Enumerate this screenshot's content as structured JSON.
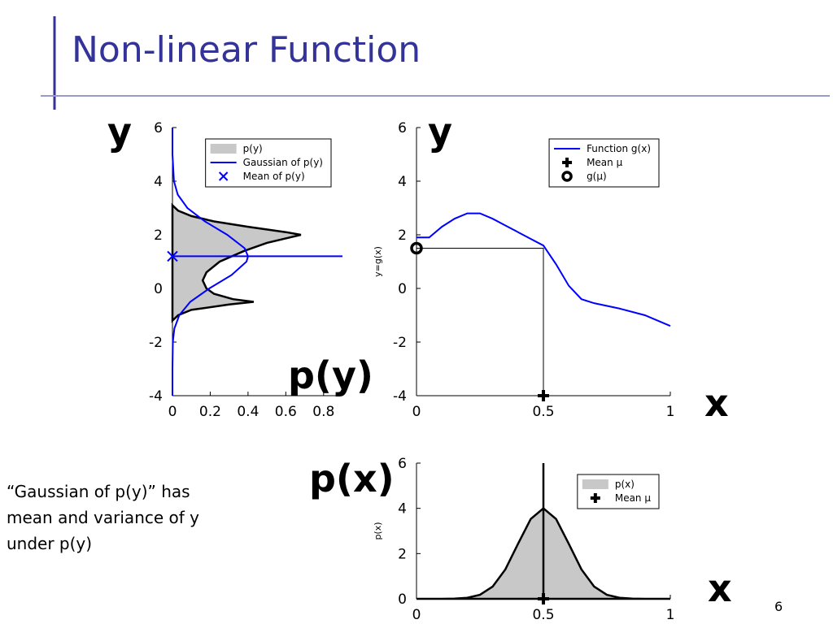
{
  "slide": {
    "title": "Non-linear Function",
    "labels": [
      "y",
      "y",
      "p(y)",
      "x",
      "p(x)",
      "x"
    ],
    "text": [
      "“Gaussian of p(y)” has",
      "mean and variance of y",
      "under p(y)"
    ],
    "page_number": "6"
  },
  "chart_data": [
    {
      "type": "line",
      "xlim": [
        0,
        0.9
      ],
      "ylim": [
        -4,
        6
      ],
      "xticks": [
        0,
        0.2,
        0.4,
        0.6,
        0.8
      ],
      "yticks": [
        -4,
        -2,
        0,
        2,
        4,
        6
      ],
      "legend": "upper right",
      "series": [
        {
          "name": "p(y)",
          "kind": "area",
          "color": "#c8c8c8",
          "edge": "#000000",
          "x": [
            0,
            0.03,
            0.1,
            0.3,
            0.43,
            0.32,
            0.22,
            0.18,
            0.16,
            0.18,
            0.25,
            0.38,
            0.5,
            0.62,
            0.68,
            0.6,
            0.4,
            0.22,
            0.1,
            0.03,
            0
          ],
          "y": [
            -1.2,
            -1,
            -0.8,
            -0.6,
            -0.5,
            -0.4,
            -0.2,
            0,
            0.3,
            0.6,
            1,
            1.4,
            1.7,
            1.9,
            2,
            2.1,
            2.3,
            2.5,
            2.7,
            2.9,
            3.1
          ]
        },
        {
          "name": "Gaussian of p(y)",
          "color": "#0000ff",
          "x": [
            0,
            0,
            0.002,
            0.01,
            0.036,
            0.094,
            0.195,
            0.313,
            0.392,
            0.4,
            0.382,
            0.29,
            0.172,
            0.079,
            0.028,
            0.008,
            0,
            0
          ],
          "y": [
            -4,
            -3,
            -2,
            -1.5,
            -1,
            -0.5,
            0,
            0.5,
            1,
            1.2,
            1.5,
            2,
            2.5,
            3,
            3.5,
            4,
            5,
            6
          ]
        },
        {
          "name": "Mean of p(y)",
          "marker": "x",
          "color": "#0000ff",
          "guide": "horizontal",
          "x": [
            0
          ],
          "y": [
            1.2
          ]
        }
      ]
    },
    {
      "type": "line",
      "xlim": [
        0,
        1
      ],
      "ylim": [
        -4,
        6
      ],
      "xticks": [
        0,
        0.5,
        1
      ],
      "yticks": [
        -4,
        -2,
        0,
        2,
        4,
        6
      ],
      "ylabel": "y=g(x)",
      "legend": "upper right",
      "projection": true,
      "series": [
        {
          "name": "Function g(x)",
          "color": "#0000ff",
          "x": [
            0,
            0.05,
            0.1,
            0.15,
            0.2,
            0.25,
            0.3,
            0.35,
            0.4,
            0.45,
            0.5,
            0.55,
            0.6,
            0.65,
            0.7,
            0.8,
            0.9,
            1
          ],
          "y": [
            1.9,
            1.9,
            2.3,
            2.6,
            2.8,
            2.8,
            2.6,
            2.35,
            2.1,
            1.85,
            1.6,
            0.9,
            0.1,
            -0.4,
            -0.55,
            -0.75,
            -1.0,
            -1.4
          ]
        },
        {
          "name": "Mean μ",
          "marker": "plus",
          "color": "#000000",
          "x": [
            0.5
          ],
          "y": [
            -4
          ]
        },
        {
          "name": "g(μ)",
          "marker": "circle",
          "color": "#000000",
          "x": [
            0
          ],
          "y": [
            1.5
          ]
        }
      ]
    },
    {
      "type": "line",
      "xlim": [
        0,
        1
      ],
      "ylim": [
        0,
        6
      ],
      "xticks": [
        0,
        0.5,
        1
      ],
      "yticks": [
        0,
        2,
        4,
        6
      ],
      "ylabel": "p(x)",
      "legend": "upper right",
      "series": [
        {
          "name": "p(x)",
          "kind": "area",
          "color": "#c8c8c8",
          "edge": "#000000",
          "x": [
            0,
            0.05,
            0.1,
            0.15,
            0.2,
            0.25,
            0.3,
            0.35,
            0.4,
            0.45,
            0.5,
            0.55,
            0.6,
            0.65,
            0.7,
            0.75,
            0.8,
            0.85,
            0.9,
            0.95,
            1
          ],
          "y": [
            0,
            0,
            0.001,
            0.009,
            0.044,
            0.176,
            0.54,
            1.3,
            2.43,
            3.53,
            4,
            3.53,
            2.43,
            1.3,
            0.54,
            0.176,
            0.044,
            0.009,
            0.001,
            0,
            0
          ]
        },
        {
          "name": "Mean μ",
          "marker": "plus",
          "color": "#000000",
          "guide": "vertical",
          "x": [
            0.5
          ],
          "y": [
            0
          ]
        }
      ]
    }
  ]
}
